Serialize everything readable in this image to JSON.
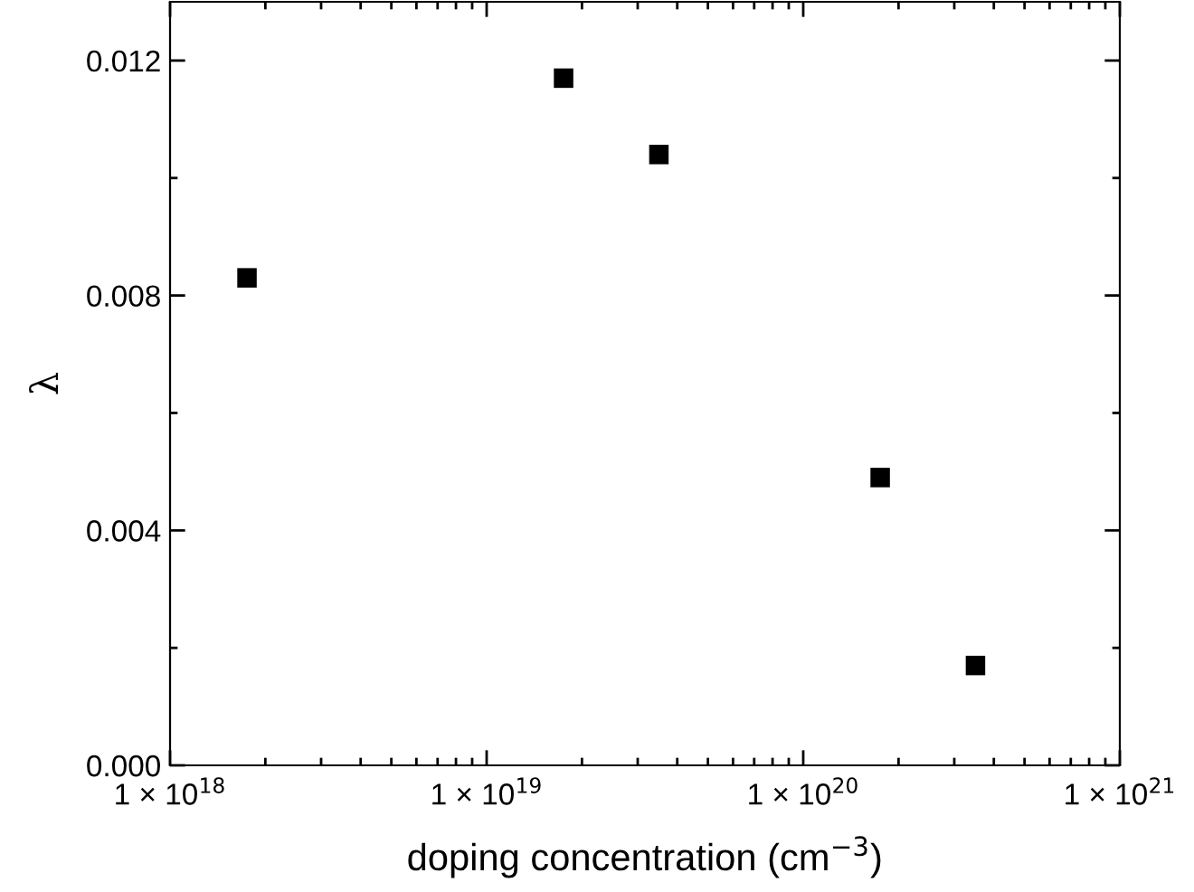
{
  "chart_data": {
    "type": "scatter",
    "xlabel": "doping concentration (cm$^{−3}$)",
    "ylabel": "λ",
    "x": [
      1.75e+18,
      1.75e+19,
      3.5e+19,
      1.75e+20,
      3.5e+20
    ],
    "series": [
      {
        "color": "#000000",
        "values": [
          0.0083,
          0.0117,
          0.0104,
          0.0049,
          0.0017
        ]
      }
    ],
    "marker": "square",
    "log": "x",
    "xlim": [
      1e+18,
      1e+21
    ],
    "xticks": [
      {
        "value": 1e+18,
        "label": "1 × 10$^{18}$"
      },
      {
        "value": 1e+19,
        "label": "1 × 10$^{19}$"
      },
      {
        "value": 1e+20,
        "label": "1 × 10$^{20}$"
      },
      {
        "value": 1e+21,
        "label": "1 × 10$^{21}$"
      }
    ],
    "ylim": [
      0,
      0.013
    ],
    "yticks": [
      {
        "value": 0,
        "label": "0.000"
      },
      {
        "value": 0.004,
        "label": "0.004"
      },
      {
        "value": 0.008,
        "label": "0.008"
      },
      {
        "value": 0.012,
        "label": "0.012"
      }
    ],
    "grid": false,
    "legend": false
  }
}
